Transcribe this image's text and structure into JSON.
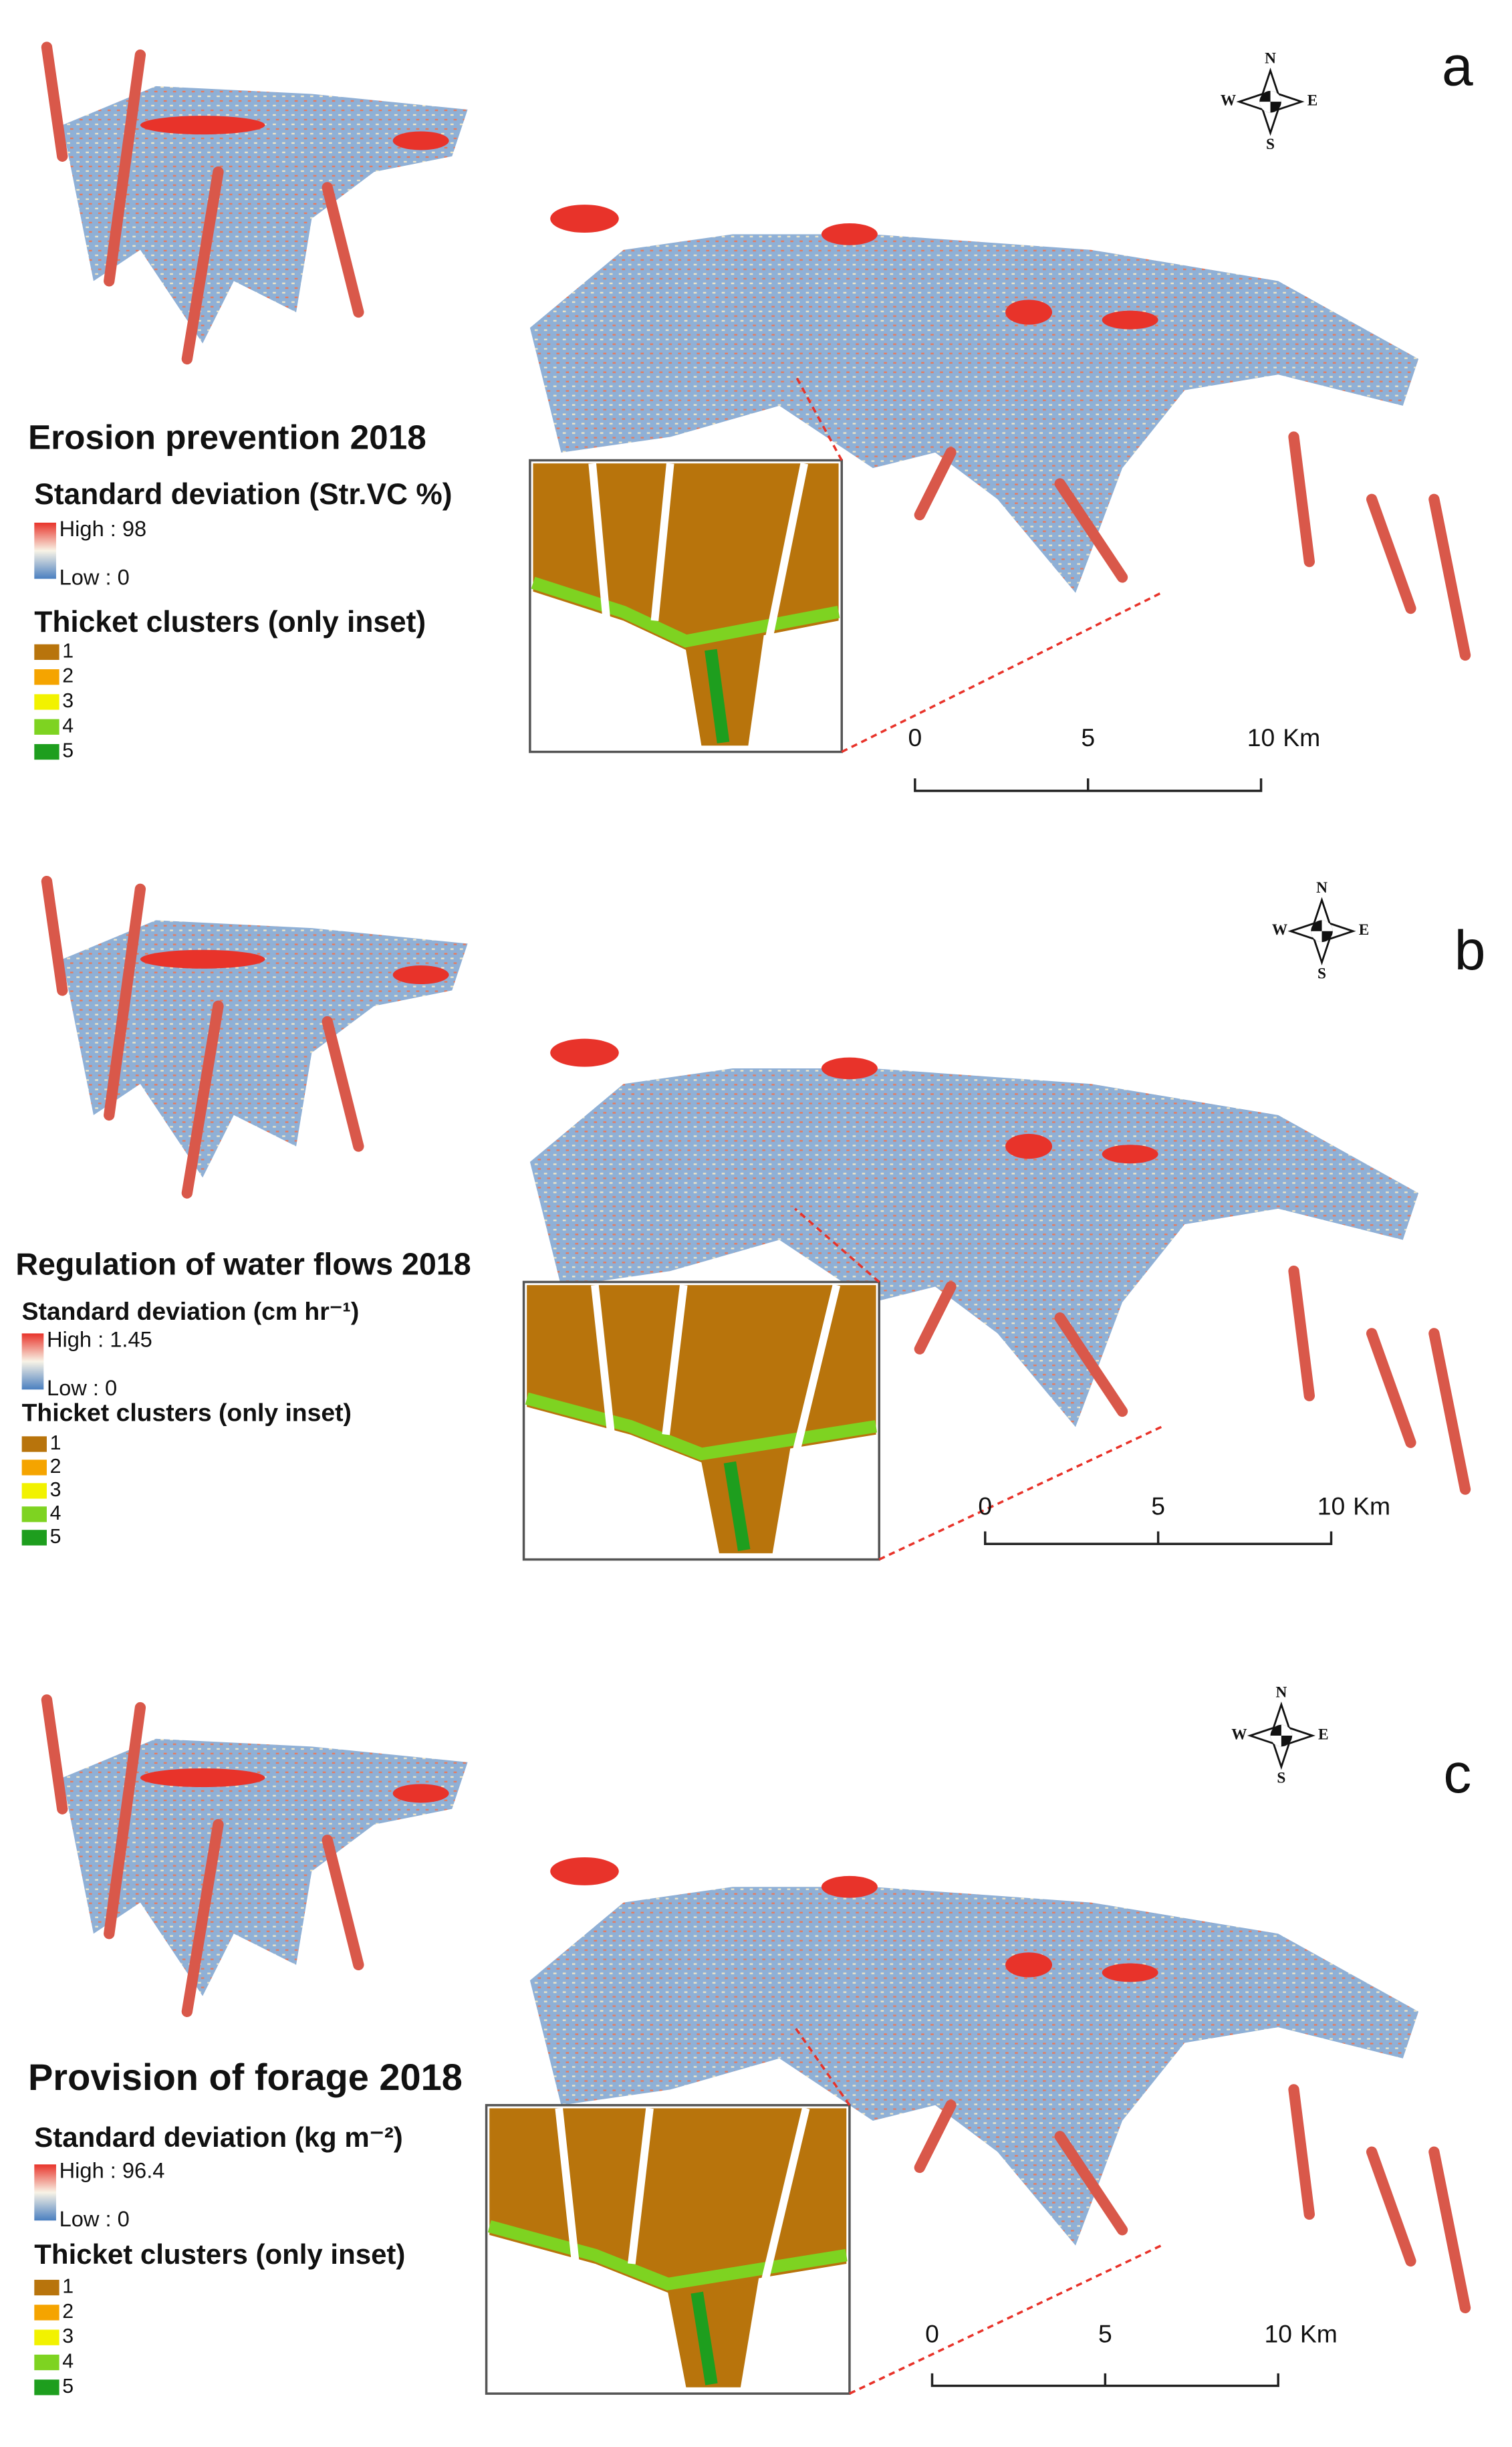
{
  "panels": [
    {
      "letter": "a",
      "title": "Erosion prevention 2018",
      "legend_title": "Standard deviation (Str.VC %)",
      "high": "High : 98",
      "low": "Low : 0",
      "clusters_title": "Thicket clusters (only inset)",
      "clusters": [
        {
          "label": "1",
          "color": "#b8740c"
        },
        {
          "label": "2",
          "color": "#f5a400"
        },
        {
          "label": "3",
          "color": "#f2f200"
        },
        {
          "label": "4",
          "color": "#7ed321"
        },
        {
          "label": "5",
          "color": "#1e9e1e"
        }
      ],
      "scale": [
        "0",
        "5",
        "10"
      ],
      "scale_unit": "Km",
      "compass": {
        "n": "N",
        "s": "S",
        "w": "W",
        "e": "E"
      }
    },
    {
      "letter": "b",
      "title": "Regulation of water flows 2018",
      "legend_title": "Standard deviation (cm hr⁻¹)",
      "high": "High : 1.45",
      "low": "Low : 0",
      "clusters_title": "Thicket clusters (only inset)",
      "clusters": [
        {
          "label": "1",
          "color": "#b8740c"
        },
        {
          "label": "2",
          "color": "#f5a400"
        },
        {
          "label": "3",
          "color": "#f2f200"
        },
        {
          "label": "4",
          "color": "#7ed321"
        },
        {
          "label": "5",
          "color": "#1e9e1e"
        }
      ],
      "scale": [
        "0",
        "5",
        "10"
      ],
      "scale_unit": "Km",
      "compass": {
        "n": "N",
        "s": "S",
        "w": "W",
        "e": "E"
      }
    },
    {
      "letter": "c",
      "title": "Provision of forage 2018",
      "legend_title": "Standard deviation (kg m⁻²)",
      "high": "High : 96.4",
      "low": "Low : 0",
      "clusters_title": "Thicket clusters (only inset)",
      "clusters": [
        {
          "label": "1",
          "color": "#b8740c"
        },
        {
          "label": "2",
          "color": "#f5a400"
        },
        {
          "label": "3",
          "color": "#f2f200"
        },
        {
          "label": "4",
          "color": "#7ed321"
        },
        {
          "label": "5",
          "color": "#1e9e1e"
        }
      ],
      "scale": [
        "0",
        "5",
        "10"
      ],
      "scale_unit": "Km",
      "compass": {
        "n": "N",
        "s": "S",
        "w": "W",
        "e": "E"
      }
    }
  ]
}
